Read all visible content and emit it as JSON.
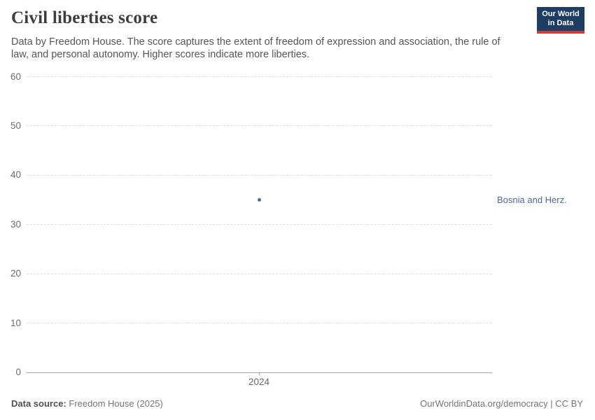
{
  "header": {
    "title": "Civil liberties score",
    "subtitle": "Data by Freedom House. The score captures the extent of freedom of expression and association, the rule of law, and personal autonomy. Higher scores indicate more liberties."
  },
  "logo": {
    "line1": "Our World",
    "line2": "in Data"
  },
  "chart_data": {
    "type": "scatter",
    "title": "Civil liberties score",
    "x": [
      2024
    ],
    "xticks": [
      "2024"
    ],
    "yticks": [
      0,
      10,
      20,
      30,
      40,
      50,
      60
    ],
    "ylim": [
      0,
      60
    ],
    "xlabel": "",
    "ylabel": "",
    "grid": "horizontal-dashed",
    "legend_position": "right-of-plot",
    "series": [
      {
        "name": "Bosnia and Herz.",
        "x": [
          2024
        ],
        "values": [
          35
        ],
        "color": "#4c6a9c"
      }
    ]
  },
  "footer": {
    "source_label": "Data source:",
    "source_value": "Freedom House (2025)",
    "rights": "OurWorldinData.org/democracy | CC BY"
  },
  "colors": {
    "accent": "#4c6a9c",
    "logo_bg": "#1d3d63",
    "logo_stripe": "#cf3e36",
    "gridline": "#dcdcdc",
    "axis_line": "#a0a0a0",
    "tick_label": "#6b6b6b"
  }
}
